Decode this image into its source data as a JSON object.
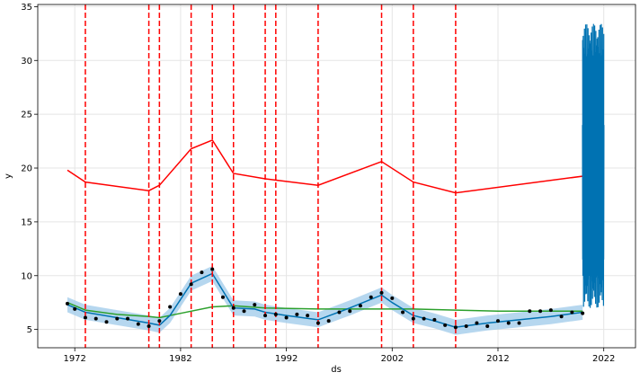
{
  "chart_data": {
    "type": "line",
    "title": "",
    "xlabel": "ds",
    "ylabel": "y",
    "xlim": [
      1968.5,
      2025.0
    ],
    "ylim": [
      3.3,
      35.2
    ],
    "grid": true,
    "x_ticks": [
      1972,
      1982,
      1992,
      2002,
      2012,
      2022
    ],
    "y_ticks": [
      5,
      10,
      15,
      20,
      25,
      30,
      35
    ],
    "x_tick_labels": [
      "1972",
      "1982",
      "1992",
      "2002",
      "2012",
      "2022"
    ],
    "y_tick_labels": [
      "5",
      "10",
      "15",
      "20",
      "25",
      "30",
      "35"
    ],
    "colors": {
      "forecast": "#0072B2",
      "band": "#9ecae9",
      "points": "#000000",
      "changepoints": "#ff0000",
      "upper_trend": "#ff0000",
      "lower_trend": "#2ca02c",
      "grid": "#e5e5e5"
    },
    "changepoints": [
      1973.0,
      1979.0,
      1980.0,
      1983.0,
      1985.0,
      1987.0,
      1990.0,
      1991.0,
      1995.0,
      2001.0,
      2004.0,
      2008.0
    ],
    "series": [
      {
        "x": [
          1971.3,
          1973.0,
          1979.0,
          1980.0,
          1983.0,
          1985.0,
          1987.0,
          1990.0,
          1995.0,
          2001.0,
          2004.0,
          2008.0,
          2022.0
        ],
        "y": [
          19.8,
          18.7,
          17.9,
          18.4,
          21.8,
          22.6,
          19.5,
          19.0,
          18.4,
          20.6,
          18.7,
          17.7,
          19.5
        ]
      },
      {
        "x": [
          1971.3,
          1973.0,
          1976.0,
          1979.0,
          1980.0,
          1982.0,
          1985.0,
          1987.0,
          1990.0,
          1995.0,
          2001.0,
          2004.0,
          2008.0,
          2012.0,
          2020.0
        ],
        "y": [
          7.5,
          6.8,
          6.4,
          6.2,
          6.1,
          6.5,
          7.1,
          7.2,
          7.0,
          6.9,
          6.9,
          6.9,
          6.8,
          6.7,
          6.7
        ]
      },
      {
        "x": [
          1971.3,
          1973.0,
          1976.0,
          1979.0,
          1980.0,
          1981.0,
          1983.0,
          1985.0,
          1987.0,
          1989.0,
          1990.0,
          1992.0,
          1995.0,
          1998.0,
          2001.0,
          2002.0,
          2004.0,
          2006.0,
          2008.0,
          2011.0,
          2014.0,
          2017.0,
          2020.0
        ],
        "y": [
          7.3,
          6.6,
          6.1,
          5.6,
          5.4,
          6.3,
          9.3,
          10.2,
          7.0,
          6.9,
          6.6,
          6.3,
          5.9,
          7.0,
          8.2,
          7.5,
          6.3,
          5.8,
          5.2,
          5.6,
          5.9,
          6.2,
          6.6
        ],
        "band_width": 0.7
      }
    ],
    "points": [
      [
        1971.3,
        7.4
      ],
      [
        1972.0,
        6.9
      ],
      [
        1973.0,
        6.1
      ],
      [
        1974.0,
        6.0
      ],
      [
        1975.0,
        5.7
      ],
      [
        1976.0,
        6.0
      ],
      [
        1977.0,
        6.0
      ],
      [
        1978.0,
        5.5
      ],
      [
        1979.0,
        5.3
      ],
      [
        1980.0,
        5.8
      ],
      [
        1981.0,
        7.1
      ],
      [
        1982.0,
        8.3
      ],
      [
        1983.0,
        9.2
      ],
      [
        1984.0,
        10.3
      ],
      [
        1985.0,
        10.6
      ],
      [
        1986.0,
        8.0
      ],
      [
        1987.0,
        7.0
      ],
      [
        1988.0,
        6.7
      ],
      [
        1989.0,
        7.3
      ],
      [
        1990.0,
        6.3
      ],
      [
        1991.0,
        6.4
      ],
      [
        1992.0,
        6.1
      ],
      [
        1993.0,
        6.4
      ],
      [
        1994.0,
        6.3
      ],
      [
        1995.0,
        5.6
      ],
      [
        1996.0,
        5.8
      ],
      [
        1997.0,
        6.6
      ],
      [
        1998.0,
        6.7
      ],
      [
        1999.0,
        7.2
      ],
      [
        2000.0,
        8.0
      ],
      [
        2001.0,
        8.4
      ],
      [
        2002.0,
        7.9
      ],
      [
        2003.0,
        6.6
      ],
      [
        2004.0,
        6.0
      ],
      [
        2005.0,
        6.0
      ],
      [
        2006.0,
        5.9
      ],
      [
        2007.0,
        5.4
      ],
      [
        2008.0,
        5.2
      ],
      [
        2009.0,
        5.3
      ],
      [
        2010.0,
        5.6
      ],
      [
        2011.0,
        5.3
      ],
      [
        2012.0,
        5.8
      ],
      [
        2013.0,
        5.6
      ],
      [
        2014.0,
        5.6
      ],
      [
        2015.0,
        6.7
      ],
      [
        2016.0,
        6.7
      ],
      [
        2017.0,
        6.8
      ],
      [
        2018.0,
        6.2
      ],
      [
        2019.0,
        6.6
      ],
      [
        2020.0,
        6.5
      ]
    ],
    "forecast_oscillation": {
      "x_start": 2020.0,
      "x_end": 2022.0,
      "center": 19.5,
      "inner_low": 11.5,
      "inner_high": 24.0,
      "outer_low": 7.0,
      "outer_high": 33.4
    }
  }
}
